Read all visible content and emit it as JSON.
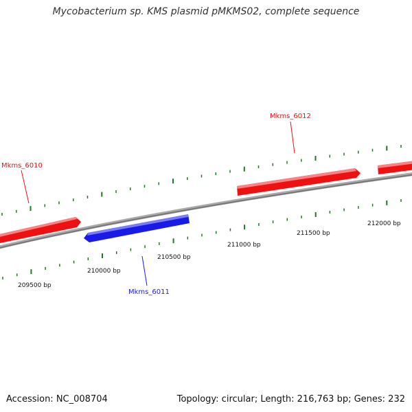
{
  "title": "Mycobacterium sp. KMS plasmid pMKMS02, complete sequence",
  "footer": {
    "accession_text": "Accession: NC_008704",
    "topology_text": "Topology: circular; Length: 216,763 bp; Genes: 232"
  },
  "colors": {
    "forward_gene": "#ee1111",
    "reverse_gene": "#1a1ae6",
    "backbone": "#888888",
    "tick": "#1f7a1f"
  },
  "scale": {
    "labels": [
      "209500 bp",
      "210000 bp",
      "210500 bp",
      "211000 bp",
      "211500 bp",
      "212000 bp"
    ]
  },
  "genes": [
    {
      "name": "Mkms_6010",
      "strand": "forward"
    },
    {
      "name": "Mkms_6011",
      "strand": "reverse"
    },
    {
      "name": "Mkms_6012",
      "strand": "forward"
    }
  ]
}
